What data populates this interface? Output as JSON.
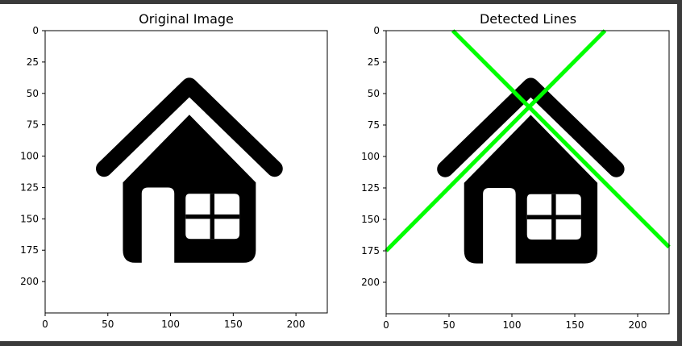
{
  "chart_data": [
    {
      "type": "image",
      "title": "Original Image",
      "xlabel": "",
      "ylabel": "",
      "xlim": [
        0,
        225
      ],
      "ylim": [
        225,
        0
      ],
      "xticks": [
        0,
        50,
        100,
        150,
        200
      ],
      "yticks": [
        0,
        25,
        50,
        75,
        100,
        125,
        150,
        175,
        200
      ],
      "image_icon": "house-icon",
      "line_color": "#00ff00",
      "lines": []
    },
    {
      "type": "image",
      "title": "Detected Lines",
      "xlabel": "",
      "ylabel": "",
      "xlim": [
        0,
        225
      ],
      "ylim": [
        225,
        0
      ],
      "xticks": [
        0,
        50,
        100,
        150,
        200
      ],
      "yticks": [
        0,
        25,
        50,
        75,
        100,
        125,
        150,
        175,
        200
      ],
      "image_icon": "house-icon",
      "line_color": "#00ff00",
      "lines": [
        {
          "name": "detected-line-1",
          "x": [
            0,
            174
          ],
          "y": [
            175,
            0
          ]
        },
        {
          "name": "detected-line-2",
          "x": [
            53,
            225
          ],
          "y": [
            0,
            172
          ]
        }
      ]
    }
  ]
}
